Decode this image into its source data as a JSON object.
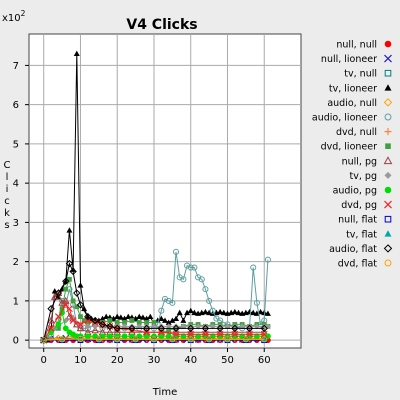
{
  "chart_data": {
    "type": "line",
    "title": "V4 Clicks",
    "xlabel": "Time",
    "ylabel": "Clicks",
    "y_multiplier": "x10",
    "y_multiplier_exp": "2",
    "xlim": [
      -4,
      70
    ],
    "ylim": [
      -0.2,
      7.8
    ],
    "x_ticks": [
      0,
      10,
      20,
      30,
      40,
      50,
      60
    ],
    "y_ticks": [
      0,
      1,
      2,
      3,
      4,
      5,
      6,
      7
    ],
    "grid": true,
    "legend_position": "right",
    "series": [
      {
        "name": "null, null",
        "color": "#ff0000",
        "marker": "circle-filled",
        "x": [
          0,
          2,
          4,
          6,
          8,
          10,
          12,
          14,
          16,
          18,
          20,
          22,
          24,
          26,
          28,
          30,
          32,
          34,
          36,
          38,
          40,
          42,
          44,
          46,
          48,
          50,
          52,
          54,
          56,
          58,
          60,
          61
        ],
        "y": [
          0,
          0,
          0,
          0,
          0,
          0,
          0,
          0,
          0,
          0,
          0,
          0,
          0,
          0,
          0,
          0,
          0,
          0,
          0,
          0,
          0,
          0,
          0,
          0,
          0,
          0,
          0,
          0,
          0,
          0,
          0,
          0
        ]
      },
      {
        "name": "null, lioneer",
        "color": "#2020d0",
        "marker": "x",
        "x": [
          0,
          3,
          6,
          9,
          12,
          15,
          18,
          21,
          24,
          27,
          30,
          33,
          36,
          39,
          42,
          45,
          48,
          51,
          54,
          57,
          60
        ],
        "y": [
          0,
          0.03,
          0.05,
          0.04,
          0.03,
          0.02,
          0.02,
          0.02,
          0.02,
          0.02,
          0.02,
          0.02,
          0.02,
          0.02,
          0.02,
          0.02,
          0.02,
          0.02,
          0.02,
          0.02,
          0.02
        ]
      },
      {
        "name": "tv, null",
        "color": "#008080",
        "marker": "square-open",
        "x": [
          0,
          5,
          10,
          15,
          20,
          25,
          30,
          35,
          40,
          45,
          50,
          55,
          60
        ],
        "y": [
          0,
          0.02,
          0.03,
          0.02,
          0.02,
          0.02,
          0.02,
          0.02,
          0.02,
          0.02,
          0.02,
          0.02,
          0.02
        ]
      },
      {
        "name": "tv, lioneer",
        "color": "#000000",
        "marker": "triangle-filled",
        "x": [
          0,
          1,
          2,
          3,
          4,
          5,
          6,
          7,
          8,
          9,
          10,
          11,
          12,
          13,
          14,
          15,
          16,
          17,
          18,
          19,
          20,
          21,
          22,
          23,
          24,
          25,
          26,
          27,
          28,
          29,
          30,
          31,
          32,
          33,
          34,
          35,
          36,
          37,
          38,
          39,
          40,
          41,
          42,
          43,
          44,
          45,
          46,
          47,
          48,
          49,
          50,
          51,
          52,
          53,
          54,
          55,
          56,
          57,
          58,
          59,
          60,
          61
        ],
        "y": [
          0,
          0,
          0.3,
          1.25,
          1.1,
          1.3,
          1.5,
          2.8,
          1.8,
          7.3,
          1.4,
          0.8,
          0.6,
          0.55,
          0.5,
          0.5,
          0.55,
          0.6,
          0.58,
          0.55,
          0.6,
          0.58,
          0.55,
          0.6,
          0.58,
          0.55,
          0.6,
          0.58,
          0.55,
          0.6,
          0.4,
          0.5,
          0.55,
          0.5,
          0.45,
          0.5,
          0.55,
          0.7,
          0.5,
          0.7,
          0.75,
          0.7,
          0.68,
          0.7,
          0.72,
          0.7,
          0.68,
          0.7,
          0.72,
          0.7,
          0.68,
          0.7,
          0.72,
          0.7,
          0.68,
          0.7,
          0.72,
          0.7,
          0.68,
          0.72,
          0.7,
          0.68
        ]
      },
      {
        "name": "audio, null",
        "color": "#ffa500",
        "marker": "diamond-open",
        "x": [
          0,
          4,
          8,
          12,
          16,
          20,
          24,
          28,
          32,
          36,
          40,
          44,
          48,
          52,
          56,
          60
        ],
        "y": [
          0,
          0.05,
          0.1,
          0.08,
          0.05,
          0.05,
          0.05,
          0.05,
          0.05,
          0.05,
          0.05,
          0.05,
          0.05,
          0.05,
          0.05,
          0.05
        ]
      },
      {
        "name": "audio, lioneer",
        "color": "#5f9ea0",
        "marker": "circle-open",
        "x": [
          0,
          2,
          4,
          5,
          6,
          7,
          8,
          9,
          10,
          12,
          14,
          16,
          18,
          20,
          22,
          24,
          26,
          28,
          30,
          31,
          32,
          33,
          34,
          35,
          36,
          37,
          38,
          39,
          40,
          41,
          42,
          43,
          44,
          45,
          46,
          47,
          48,
          50,
          52,
          54,
          56,
          57,
          58,
          59,
          60,
          61
        ],
        "y": [
          0,
          0.1,
          0.5,
          1.0,
          0.9,
          1.3,
          0.9,
          0.4,
          0.3,
          0.3,
          0.4,
          0.3,
          0.35,
          0.3,
          0.3,
          0.3,
          0.3,
          0.3,
          0.3,
          0.4,
          0.75,
          1.05,
          1.0,
          0.95,
          2.25,
          1.6,
          1.55,
          1.9,
          1.85,
          1.85,
          1.6,
          1.55,
          1.3,
          1.0,
          0.75,
          0.55,
          0.5,
          0.4,
          0.35,
          0.3,
          0.3,
          1.85,
          0.95,
          0.4,
          0.5,
          2.05
        ]
      },
      {
        "name": "dvd, null",
        "color": "#ff8040",
        "marker": "plus",
        "x": [
          0,
          5,
          10,
          15,
          20,
          25,
          30,
          35,
          40,
          45,
          50,
          55,
          60
        ],
        "y": [
          0,
          0.03,
          0.04,
          0.03,
          0.02,
          0.02,
          0.02,
          0.02,
          0.02,
          0.02,
          0.02,
          0.02,
          0.02
        ]
      },
      {
        "name": "dvd, lioneer",
        "color": "#40a040",
        "marker": "square-filled",
        "x": [
          0,
          2,
          4,
          5,
          6,
          7,
          8,
          9,
          10,
          11,
          12,
          14,
          16,
          18,
          20,
          22,
          24,
          26,
          28,
          30,
          32,
          34,
          36,
          38,
          40,
          42,
          44,
          46,
          48,
          50,
          52,
          54,
          56,
          58,
          60,
          61
        ],
        "y": [
          0,
          0.2,
          0.3,
          0.8,
          1.3,
          1.55,
          1.0,
          0.85,
          0.6,
          0.5,
          0.45,
          0.45,
          0.45,
          0.5,
          0.45,
          0.45,
          0.5,
          0.45,
          0.45,
          0.45,
          0.2,
          0.25,
          0.3,
          0.35,
          0.4,
          0.4,
          0.35,
          0.4,
          0.4,
          0.35,
          0.4,
          0.4,
          0.35,
          0.4,
          0.4,
          0.35
        ]
      },
      {
        "name": "null, pg",
        "color": "#a04040",
        "marker": "triangle-open",
        "x": [
          0,
          2,
          3,
          4,
          5,
          6,
          7,
          8,
          9,
          10,
          12,
          14,
          16,
          18,
          20,
          24,
          28,
          32,
          36,
          40,
          44,
          48,
          52,
          56,
          60
        ],
        "y": [
          0,
          0.5,
          1.1,
          1.2,
          0.95,
          1.0,
          0.6,
          0.55,
          0.4,
          0.3,
          0.2,
          0.25,
          0.2,
          0.2,
          0.2,
          0.2,
          0.2,
          0.2,
          0.2,
          0.2,
          0.2,
          0.2,
          0.2,
          0.2,
          0.2
        ]
      },
      {
        "name": "tv, pg",
        "color": "#999999",
        "marker": "diamond-filled",
        "x": [
          0,
          3,
          6,
          8,
          10,
          12,
          14,
          16,
          18,
          20,
          22,
          24,
          26,
          28,
          30,
          32,
          34,
          36,
          38,
          40,
          42,
          44,
          46,
          48,
          50,
          52,
          54,
          56,
          58,
          60,
          61
        ],
        "y": [
          0,
          0.3,
          0.5,
          0.55,
          0.4,
          0.35,
          0.35,
          0.35,
          0.35,
          0.35,
          0.35,
          0.35,
          0.35,
          0.35,
          0.35,
          0.35,
          0.35,
          0.35,
          0.35,
          0.35,
          0.35,
          0.35,
          0.35,
          0.35,
          0.35,
          0.35,
          0.35,
          0.35,
          0.35,
          0.35,
          0.35
        ]
      },
      {
        "name": "audio, pg",
        "color": "#00dd00",
        "marker": "circle-filled",
        "x": [
          0,
          2,
          4,
          5,
          6,
          7,
          8,
          9,
          10,
          12,
          14,
          16,
          18,
          20,
          22,
          24,
          26,
          28,
          30,
          32,
          34,
          36,
          38,
          40,
          42,
          44,
          46,
          48,
          50,
          52,
          54,
          56,
          58,
          60,
          61
        ],
        "y": [
          0,
          0.2,
          0.4,
          0.7,
          0.3,
          0.2,
          0.15,
          0.1,
          0.1,
          0.1,
          0.1,
          0.1,
          0.1,
          0.1,
          0.1,
          0.1,
          0.1,
          0.1,
          0.1,
          0.1,
          0.1,
          0.1,
          0.1,
          0.1,
          0.1,
          0.1,
          0.1,
          0.1,
          0.1,
          0.1,
          0.1,
          0.1,
          0.1,
          0.1,
          0.1
        ]
      },
      {
        "name": "dvd, pg",
        "color": "#ff2020",
        "marker": "x",
        "x": [
          0,
          2,
          4,
          6,
          7,
          8,
          10,
          12,
          14,
          16,
          18,
          20,
          24,
          28,
          32,
          36,
          40,
          44,
          48,
          52,
          56,
          60
        ],
        "y": [
          0,
          0.3,
          0.6,
          0.9,
          0.8,
          0.5,
          0.4,
          0.5,
          0.45,
          0.4,
          0.35,
          0.3,
          0.25,
          0.2,
          0.2,
          0.15,
          0.15,
          0.15,
          0.15,
          0.15,
          0.15,
          0.15
        ]
      },
      {
        "name": "null, flat",
        "color": "#0000cc",
        "marker": "square-open",
        "x": [
          0,
          5,
          10,
          15,
          20,
          25,
          30,
          35,
          40,
          45,
          50,
          55,
          60
        ],
        "y": [
          0,
          0,
          0,
          0,
          0,
          0,
          0,
          0,
          0,
          0,
          0,
          0,
          0
        ]
      },
      {
        "name": "tv, flat",
        "color": "#00aaaa",
        "marker": "triangle-filled",
        "x": [
          0,
          5,
          10,
          15,
          20,
          25,
          30,
          35,
          40,
          45,
          50,
          55,
          60
        ],
        "y": [
          0,
          0.02,
          0.03,
          0.02,
          0.02,
          0.02,
          0.02,
          0.02,
          0.02,
          0.02,
          0.02,
          0.02,
          0.02
        ]
      },
      {
        "name": "audio, flat",
        "color": "#000000",
        "marker": "diamond-open",
        "x": [
          0,
          2,
          4,
          6,
          7,
          8,
          9,
          10,
          12,
          14,
          16,
          18,
          20,
          24,
          28,
          32,
          36,
          40,
          44,
          48,
          52,
          56,
          60
        ],
        "y": [
          0,
          0.8,
          1.2,
          1.5,
          1.95,
          1.75,
          1.2,
          0.9,
          0.6,
          0.5,
          0.4,
          0.35,
          0.3,
          0.3,
          0.3,
          0.3,
          0.3,
          0.3,
          0.3,
          0.3,
          0.3,
          0.3,
          0.3
        ]
      },
      {
        "name": "dvd, flat",
        "color": "#ffa500",
        "marker": "circle-open",
        "x": [
          0,
          5,
          10,
          15,
          20,
          25,
          30,
          35,
          40,
          45,
          50,
          55,
          60
        ],
        "y": [
          0,
          0.02,
          0.03,
          0.02,
          0.02,
          0.02,
          0.02,
          0.02,
          0.02,
          0.02,
          0.02,
          0.02,
          0.02
        ]
      }
    ]
  }
}
